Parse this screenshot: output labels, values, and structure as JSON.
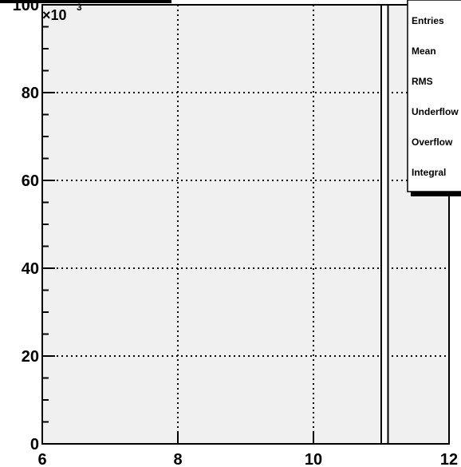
{
  "chart_data": {
    "type": "bar",
    "title": "",
    "xlabel": "",
    "ylabel": "",
    "y_multiplier_label": "×10",
    "y_multiplier_exponent": "3",
    "xlim": [
      6,
      12
    ],
    "ylim": [
      0,
      100
    ],
    "x_ticks": [
      "6",
      "8",
      "10",
      "12"
    ],
    "y_ticks": [
      "0",
      "20",
      "40",
      "60",
      "80",
      "100"
    ],
    "grid": true,
    "bins": [
      {
        "x_low": 11.0,
        "x_high": 11.1,
        "value": 100
      }
    ],
    "stats_box": {
      "labels": [
        "Entries",
        "Mean",
        "RMS",
        "Underflow",
        "Overflow",
        "Integral"
      ],
      "placement": "top-right"
    }
  }
}
